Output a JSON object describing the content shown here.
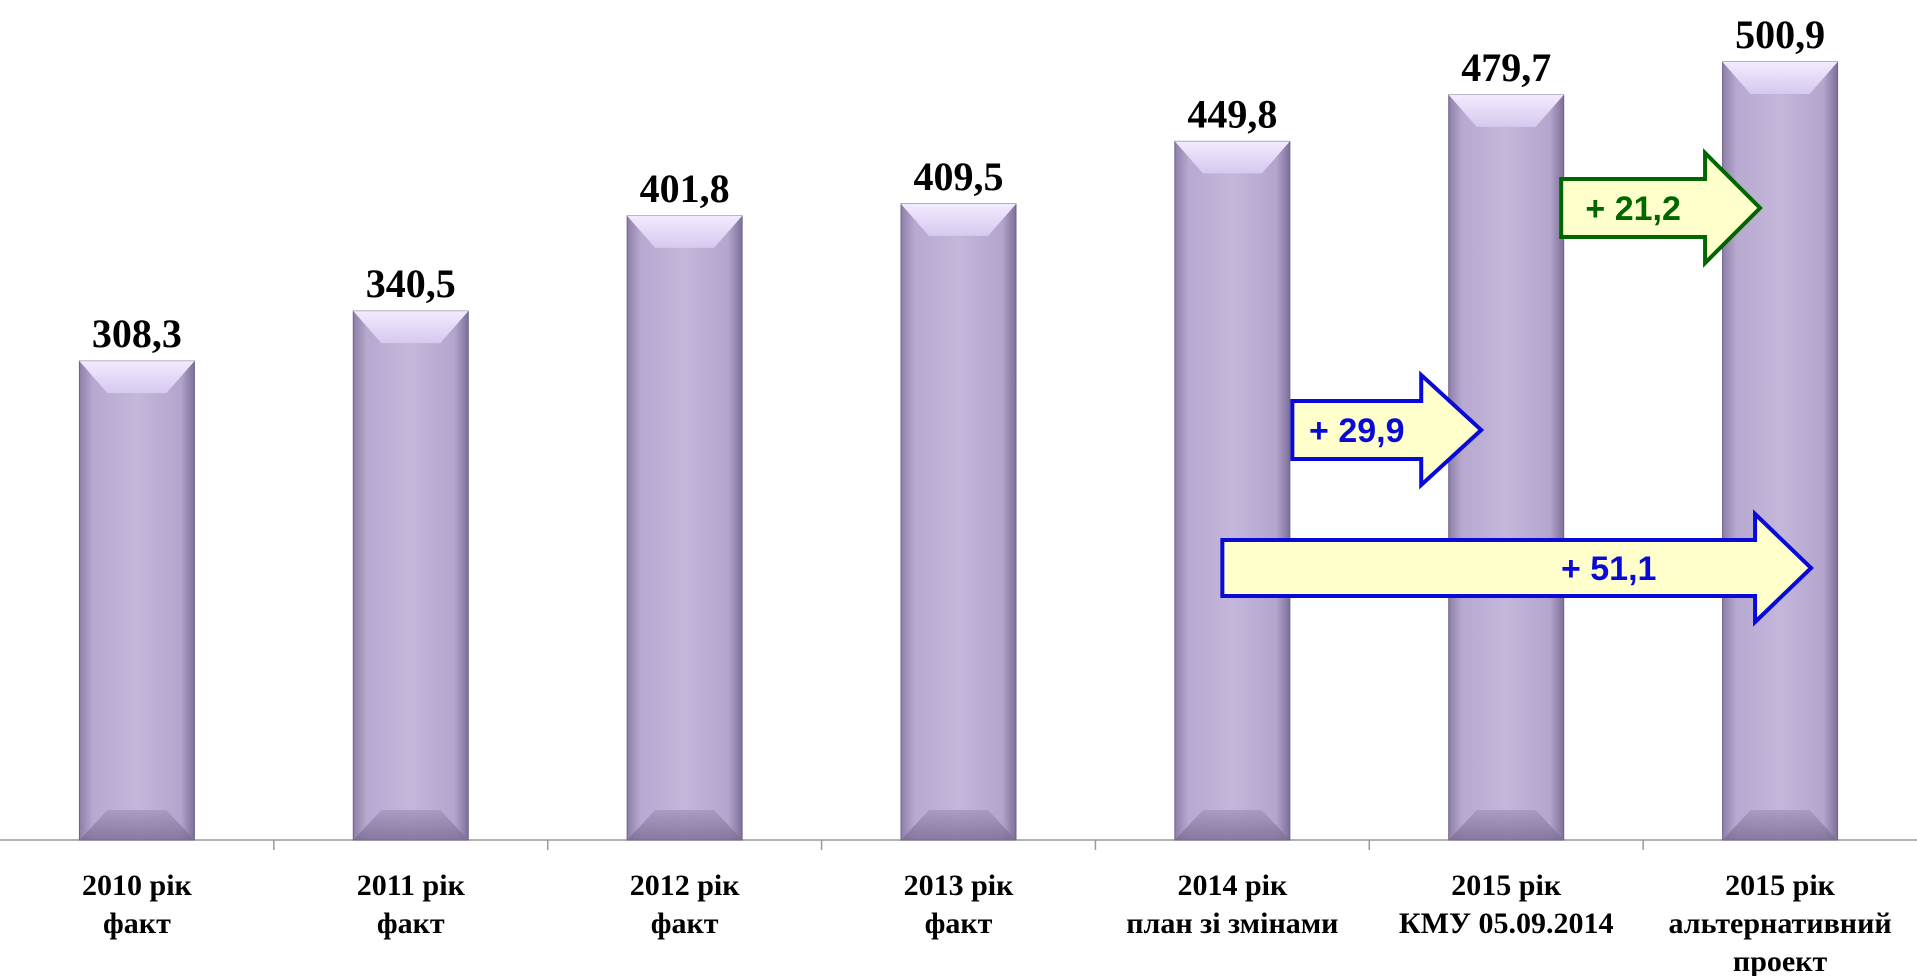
{
  "chart_data": {
    "type": "bar",
    "categories": [
      [
        "2010 рік",
        "факт"
      ],
      [
        "2011 рік",
        "факт"
      ],
      [
        "2012 рік",
        "факт"
      ],
      [
        "2013 рік",
        "факт"
      ],
      [
        "2014 рік",
        "план зі змінами"
      ],
      [
        "2015 рік",
        "КМУ 05.09.2014"
      ],
      [
        "2015 рік",
        "альтернативний",
        "проект"
      ]
    ],
    "values": [
      308.3,
      340.5,
      401.8,
      409.5,
      449.8,
      479.7,
      500.9
    ],
    "value_labels": [
      "308,3",
      "340,5",
      "401,8",
      "409,5",
      "449,8",
      "479,7",
      "500,9"
    ],
    "title": "",
    "xlabel": "",
    "ylabel": "",
    "ylim": [
      0,
      500.9
    ],
    "grid": false,
    "annotations": [
      {
        "label": "+ 29,9",
        "from_category": 4,
        "to_category": 5,
        "color": "#0a0ad8",
        "fill": "#ffffcc"
      },
      {
        "label": "+ 21,2",
        "from_category": 5,
        "to_category": 6,
        "color": "#006600",
        "fill": "#ffffcc"
      },
      {
        "label": "+ 51,1",
        "from_category": 4,
        "to_category": 6,
        "color": "#0a0ad8",
        "fill": "#ffffcc"
      }
    ]
  },
  "colors": {
    "bar": "#bcaed4",
    "bar_edge": "#6f6288",
    "bar_highlight": "#e6dcf5",
    "axis": "#999999"
  }
}
